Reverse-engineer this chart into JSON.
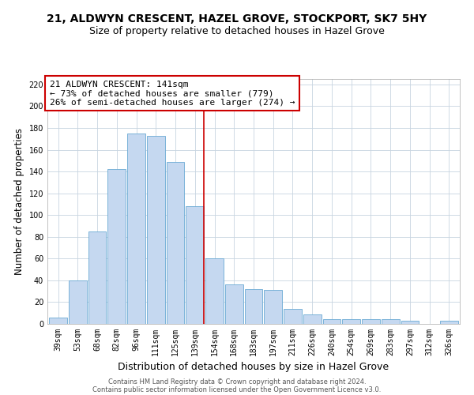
{
  "title": "21, ALDWYN CRESCENT, HAZEL GROVE, STOCKPORT, SK7 5HY",
  "subtitle": "Size of property relative to detached houses in Hazel Grove",
  "xlabel": "Distribution of detached houses by size in Hazel Grove",
  "ylabel": "Number of detached properties",
  "bar_labels": [
    "39sqm",
    "53sqm",
    "68sqm",
    "82sqm",
    "96sqm",
    "111sqm",
    "125sqm",
    "139sqm",
    "154sqm",
    "168sqm",
    "183sqm",
    "197sqm",
    "211sqm",
    "226sqm",
    "240sqm",
    "254sqm",
    "269sqm",
    "283sqm",
    "297sqm",
    "312sqm",
    "326sqm"
  ],
  "bar_values": [
    6,
    40,
    85,
    142,
    175,
    173,
    149,
    108,
    60,
    36,
    32,
    31,
    14,
    9,
    4,
    4,
    4,
    4,
    3,
    0,
    3
  ],
  "bar_color": "#c5d8f0",
  "bar_edge_color": "#6aaad4",
  "highlight_index": 7,
  "highlight_line_color": "#cc0000",
  "ann_line1": "21 ALDWYN CRESCENT: 141sqm",
  "ann_line2": "← 73% of detached houses are smaller (779)",
  "ann_line3": "26% of semi-detached houses are larger (274) →",
  "annotation_box_color": "#ffffff",
  "annotation_box_edge_color": "#cc0000",
  "ylim": [
    0,
    225
  ],
  "yticks": [
    0,
    20,
    40,
    60,
    80,
    100,
    120,
    140,
    160,
    180,
    200,
    220
  ],
  "footer_line1": "Contains HM Land Registry data © Crown copyright and database right 2024.",
  "footer_line2": "Contains public sector information licensed under the Open Government Licence v3.0.",
  "background_color": "#ffffff",
  "grid_color": "#c8d4e0",
  "title_fontsize": 10,
  "subtitle_fontsize": 9,
  "axis_label_fontsize": 8.5,
  "tick_fontsize": 7,
  "footer_fontsize": 6,
  "ann_fontsize": 8
}
